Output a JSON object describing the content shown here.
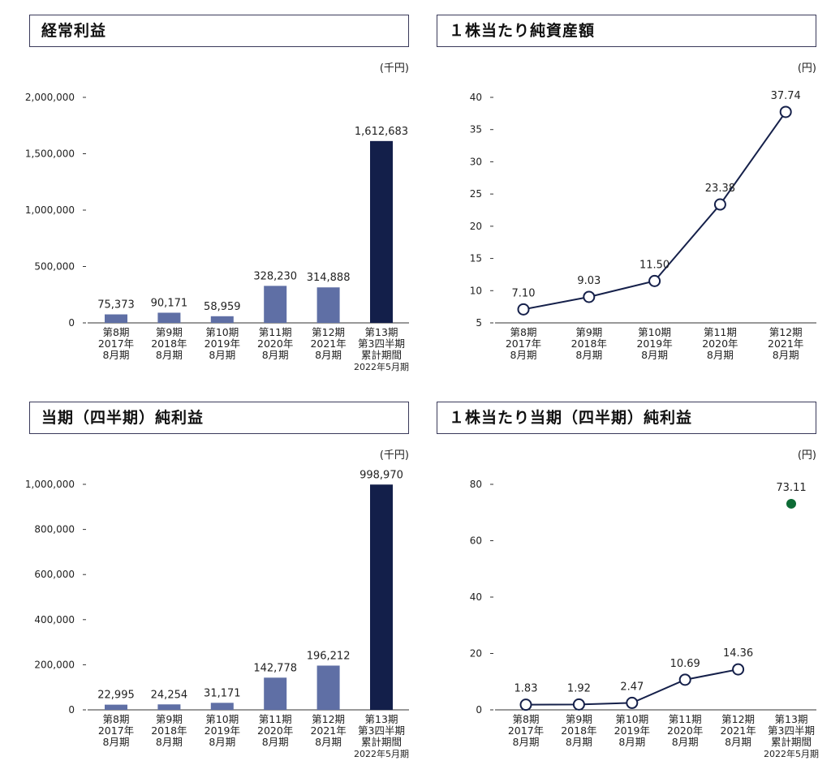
{
  "units": {
    "sen_yen": "(千円)",
    "yen": "(円)"
  },
  "periods": [
    [
      "第8期",
      "2017年",
      "8月期"
    ],
    [
      "第9期",
      "2018年",
      "8月期"
    ],
    [
      "第10期",
      "2019年",
      "8月期"
    ],
    [
      "第11期",
      "2020年",
      "8月期"
    ],
    [
      "第12期",
      "2021年",
      "8月期"
    ],
    [
      "第13期",
      "第3四半期",
      "累計期間",
      "2022年5月期"
    ]
  ],
  "chart_data": [
    {
      "type": "bar",
      "title": "経常利益",
      "unit": "(千円)",
      "categories": [
        "第8期 2017年8月期",
        "第9期 2018年8月期",
        "第10期 2019年8月期",
        "第11期 2020年8月期",
        "第12期 2021年8月期",
        "第13期 第3四半期累計期間 2022年5月期"
      ],
      "values": [
        75373,
        90171,
        58959,
        328230,
        314888,
        1612683
      ],
      "labels": [
        "75,373",
        "90,171",
        "58,959",
        "328,230",
        "314,888",
        "1,612,683"
      ],
      "yticks": [
        "0",
        "500,000",
        "1,000,000",
        "1,500,000",
        "2,000,000"
      ],
      "ylim": [
        0,
        2000000
      ],
      "colors": [
        "#5f6fa5",
        "#5f6fa5",
        "#5f6fa5",
        "#5f6fa5",
        "#5f6fa5",
        "#131f4a"
      ]
    },
    {
      "type": "line",
      "title": "１株当たり純資産額",
      "unit": "(円)",
      "categories": [
        "第8期 2017年8月期",
        "第9期 2018年8月期",
        "第10期 2019年8月期",
        "第11期 2020年8月期",
        "第12期 2021年8月期"
      ],
      "values": [
        7.1,
        9.03,
        11.5,
        23.38,
        37.74
      ],
      "labels": [
        "7.10",
        "9.03",
        "11.50",
        "23.38",
        "37.74"
      ],
      "yticks": [
        "5",
        "10",
        "15",
        "20",
        "25",
        "30",
        "35",
        "40"
      ],
      "ylim": [
        5,
        40
      ],
      "colors": [
        "#15204a"
      ]
    },
    {
      "type": "bar",
      "title": "当期（四半期）純利益",
      "unit": "(千円)",
      "categories": [
        "第8期 2017年8月期",
        "第9期 2018年8月期",
        "第10期 2019年8月期",
        "第11期 2020年8月期",
        "第12期 2021年8月期",
        "第13期 第3四半期累計期間 2022年5月期"
      ],
      "values": [
        22995,
        24254,
        31171,
        142778,
        196212,
        998970
      ],
      "labels": [
        "22,995",
        "24,254",
        "31,171",
        "142,778",
        "196,212",
        "998,970"
      ],
      "yticks": [
        "0",
        "200,000",
        "400,000",
        "600,000",
        "800,000",
        "1,000,000"
      ],
      "ylim": [
        0,
        1000000
      ],
      "colors": [
        "#5f6fa5",
        "#5f6fa5",
        "#5f6fa5",
        "#5f6fa5",
        "#5f6fa5",
        "#131f4a"
      ]
    },
    {
      "type": "line",
      "title": "１株当たり当期（四半期）純利益",
      "unit": "(円)",
      "categories": [
        "第8期 2017年8月期",
        "第9期 2018年8月期",
        "第10期 2019年8月期",
        "第11期 2020年8月期",
        "第12期 2021年8月期",
        "第13期 第3四半期累計期間 2022年5月期"
      ],
      "values": [
        1.83,
        1.92,
        2.47,
        10.69,
        14.36
      ],
      "labels": [
        "1.83",
        "1.92",
        "2.47",
        "10.69",
        "14.36"
      ],
      "extra_point": {
        "value": 73.11,
        "label": "73.11",
        "color": "#0d6b35"
      },
      "yticks": [
        "0",
        "20",
        "40",
        "60",
        "80"
      ],
      "ylim": [
        0,
        80
      ],
      "colors": [
        "#15204a"
      ]
    }
  ]
}
